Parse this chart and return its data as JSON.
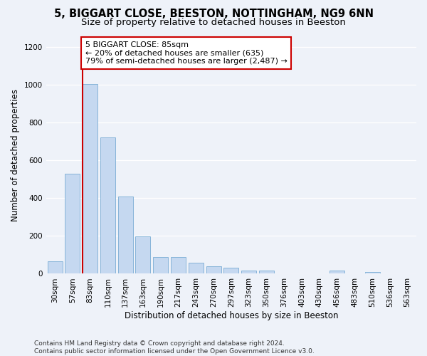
{
  "title_line1": "5, BIGGART CLOSE, BEESTON, NOTTINGHAM, NG9 6NN",
  "title_line2": "Size of property relative to detached houses in Beeston",
  "xlabel": "Distribution of detached houses by size in Beeston",
  "ylabel": "Number of detached properties",
  "categories": [
    "30sqm",
    "57sqm",
    "83sqm",
    "110sqm",
    "137sqm",
    "163sqm",
    "190sqm",
    "217sqm",
    "243sqm",
    "270sqm",
    "297sqm",
    "323sqm",
    "350sqm",
    "376sqm",
    "403sqm",
    "430sqm",
    "456sqm",
    "483sqm",
    "510sqm",
    "536sqm",
    "563sqm"
  ],
  "values": [
    65,
    530,
    1005,
    720,
    408,
    198,
    90,
    90,
    58,
    38,
    32,
    18,
    18,
    0,
    0,
    0,
    18,
    0,
    10,
    0,
    0
  ],
  "bar_color": "#c5d8f0",
  "bar_edge_color": "#7aadd4",
  "vline_color": "#cc0000",
  "annotation_text": "5 BIGGART CLOSE: 85sqm\n← 20% of detached houses are smaller (635)\n79% of semi-detached houses are larger (2,487) →",
  "annotation_box_color": "#ffffff",
  "annotation_box_edge": "#cc0000",
  "ylim": [
    0,
    1250
  ],
  "yticks": [
    0,
    200,
    400,
    600,
    800,
    1000,
    1200
  ],
  "background_color": "#eef2f9",
  "grid_color": "#ffffff",
  "footer": "Contains HM Land Registry data © Crown copyright and database right 2024.\nContains public sector information licensed under the Open Government Licence v3.0.",
  "title_fontsize": 10.5,
  "subtitle_fontsize": 9.5,
  "axis_label_fontsize": 8.5,
  "tick_fontsize": 7.5,
  "annotation_fontsize": 8,
  "footer_fontsize": 6.5
}
